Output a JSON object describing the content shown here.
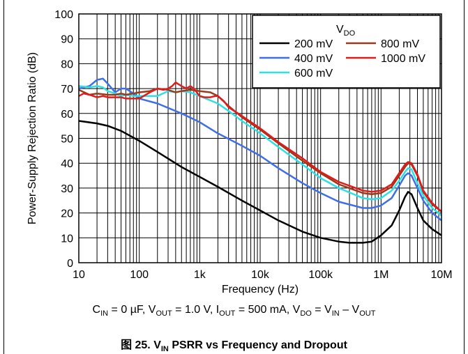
{
  "chart_data": {
    "type": "line",
    "xscale": "log",
    "xlim": [
      10,
      10000000
    ],
    "ylim": [
      0,
      100
    ],
    "xlabel": "Frequency (Hz)",
    "ylabel": "Power-Supply Rejection Ratio (dB)",
    "xticks": [
      {
        "value": 10,
        "label": "10"
      },
      {
        "value": 100,
        "label": "100"
      },
      {
        "value": 1000,
        "label": "1k"
      },
      {
        "value": 10000,
        "label": "10k"
      },
      {
        "value": 100000,
        "label": "100k"
      },
      {
        "value": 1000000,
        "label": "1M"
      },
      {
        "value": 10000000,
        "label": "10M"
      }
    ],
    "yticks": [
      0,
      10,
      20,
      30,
      40,
      50,
      60,
      70,
      80,
      90,
      100
    ],
    "grid": true,
    "legend": {
      "title": "V",
      "title_sub": "DO",
      "placement": "top-right"
    },
    "series": [
      {
        "name": "200 mV",
        "color": "#000000",
        "x": [
          10,
          20,
          30,
          50,
          100,
          200,
          500,
          1000,
          2000,
          5000,
          10000,
          20000,
          50000,
          100000,
          200000,
          300000,
          500000,
          700000,
          1000000,
          1500000,
          2000000,
          2500000,
          2800000,
          3200000,
          4000000,
          5000000,
          7000000,
          10000000
        ],
        "y": [
          57,
          56,
          55,
          53,
          49,
          44.5,
          38.5,
          34.5,
          30.5,
          25,
          21,
          17,
          12.5,
          10,
          8.5,
          8,
          8,
          8.5,
          11,
          15,
          21,
          26.5,
          28.5,
          27.5,
          22,
          17,
          13.5,
          11
        ]
      },
      {
        "name": "400 mV",
        "color": "#3f6fe6",
        "x": [
          10,
          15,
          20,
          25,
          30,
          40,
          50,
          60,
          80,
          100,
          200,
          500,
          1000,
          2000,
          5000,
          10000,
          20000,
          50000,
          100000,
          200000,
          500000,
          700000,
          1000000,
          1500000,
          2000000,
          2500000,
          2800000,
          3200000,
          4000000,
          5000000,
          7000000,
          10000000
        ],
        "y": [
          70,
          71,
          73.5,
          74,
          72,
          68.5,
          70,
          70,
          68,
          66,
          64,
          60,
          56.5,
          52,
          47,
          43,
          38,
          32,
          28,
          24.5,
          22,
          22,
          23,
          26,
          31,
          35,
          36,
          35,
          30,
          25,
          20,
          17
        ]
      },
      {
        "name": "600 mV",
        "color": "#2ee0e6",
        "x": [
          10,
          15,
          20,
          25,
          30,
          40,
          50,
          60,
          80,
          100,
          150,
          200,
          300,
          400,
          500,
          700,
          1000,
          2000,
          3000,
          5000,
          10000,
          20000,
          50000,
          100000,
          200000,
          500000,
          700000,
          1000000,
          1500000,
          2000000,
          2500000,
          2800000,
          3200000,
          4000000,
          5000000,
          7000000,
          10000000
        ],
        "y": [
          71,
          70.5,
          71,
          70.5,
          69,
          68,
          67,
          67.5,
          67,
          67,
          67,
          67,
          69,
          68.5,
          69,
          68.5,
          67,
          64,
          61,
          57,
          52,
          46.5,
          39.5,
          34,
          30,
          26,
          25.5,
          26,
          29,
          33,
          36.5,
          38,
          37.5,
          32,
          27,
          22,
          19
        ]
      },
      {
        "name": "800 mV",
        "color": "#9a3a1a",
        "x": [
          10,
          15,
          20,
          30,
          40,
          50,
          60,
          80,
          100,
          150,
          200,
          300,
          400,
          500,
          700,
          1000,
          1500,
          2000,
          3000,
          5000,
          10000,
          20000,
          50000,
          100000,
          200000,
          500000,
          700000,
          1000000,
          1500000,
          2000000,
          2500000,
          2800000,
          3200000,
          4000000,
          5000000,
          7000000,
          10000000
        ],
        "y": [
          69.5,
          67.5,
          68,
          67.5,
          67.5,
          68,
          67.5,
          68,
          68.5,
          69,
          70,
          69.5,
          68.5,
          69,
          69.5,
          69,
          68.5,
          67,
          63,
          58.5,
          53.5,
          48,
          41,
          36,
          31.5,
          28,
          27.5,
          28,
          30.5,
          35,
          38.5,
          40,
          39.5,
          35,
          28.5,
          23.5,
          20.5
        ]
      },
      {
        "name": "1000 mV",
        "color": "#e01b1b",
        "x": [
          10,
          12,
          15,
          20,
          25,
          30,
          40,
          50,
          60,
          80,
          100,
          150,
          200,
          250,
          300,
          350,
          400,
          500,
          600,
          700,
          800,
          1000,
          1200,
          1500,
          1800,
          2000,
          2500,
          3000,
          5000,
          10000,
          20000,
          50000,
          100000,
          200000,
          500000,
          700000,
          1000000,
          1500000,
          2000000,
          2500000,
          2800000,
          3200000,
          4000000,
          5000000,
          7000000,
          10000000
        ],
        "y": [
          67,
          68,
          67.5,
          66.5,
          67,
          66.5,
          66.5,
          66.5,
          66,
          66,
          66,
          68.5,
          70,
          69.5,
          70,
          71,
          72.5,
          71,
          70,
          71,
          70,
          67,
          66.5,
          66.5,
          67,
          67,
          65,
          62.5,
          59,
          54,
          48.5,
          42,
          36.5,
          32.5,
          29,
          28.5,
          29,
          31.5,
          36,
          39.5,
          40.5,
          40,
          35.5,
          29,
          24,
          20.5
        ]
      }
    ]
  },
  "conditions": {
    "cin_main": "C",
    "cin_sub": "IN",
    "cin_rest": " = 0 µF, ",
    "vout_main": "V",
    "vout_sub": "OUT",
    "vout_rest": " = 1.0 V, ",
    "iout_main": "I",
    "iout_sub": "OUT",
    "iout_rest": " = 500 mA, ",
    "vdo_main": "V",
    "vdo_sub": "DO",
    "vdo_eq": " = ",
    "vin_main": "V",
    "vin_sub": "IN",
    "minus": " – ",
    "vout2_main": "V",
    "vout2_sub": "OUT"
  },
  "caption": {
    "prefix": "图 25. ",
    "v_main": "V",
    "v_sub": "IN",
    "rest": " PSRR vs Frequency and Dropout"
  }
}
